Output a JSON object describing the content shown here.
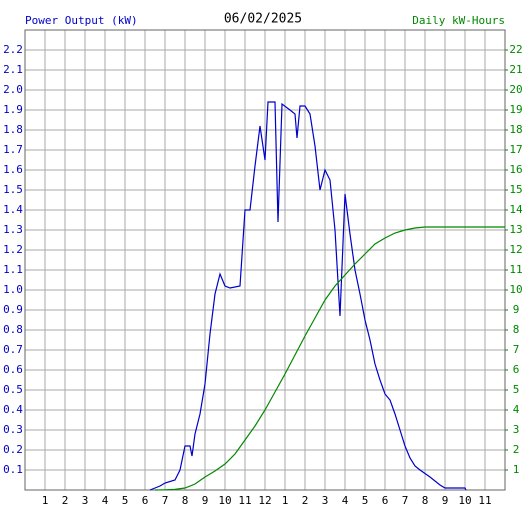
{
  "chart_data": {
    "type": "line",
    "title": "06/02/2025",
    "y_label": "Power Output (kW)",
    "y2_label": "Daily kW-Hours",
    "xlim": [
      0,
      24
    ],
    "xticks": [
      1,
      2,
      3,
      4,
      5,
      6,
      7,
      8,
      9,
      10,
      11,
      12,
      {
        "value": 13,
        "label": "1"
      },
      {
        "value": 14,
        "label": "2"
      },
      {
        "value": 15,
        "label": "3"
      },
      {
        "value": 16,
        "label": "4"
      },
      {
        "value": 17,
        "label": "5"
      },
      {
        "value": 18,
        "label": "6"
      },
      {
        "value": 19,
        "label": "7"
      },
      {
        "value": 20,
        "label": "8"
      },
      {
        "value": 21,
        "label": "9"
      },
      {
        "value": 22,
        "label": "10"
      },
      {
        "value": 23,
        "label": "11"
      }
    ],
    "ylim": [
      0,
      2.3
    ],
    "yticks": [
      0.1,
      0.2,
      0.3,
      0.4,
      0.5,
      0.6,
      0.7,
      0.8,
      0.9,
      {
        "value": 1,
        "label": "1.0"
      },
      1.1,
      1.2,
      1.3,
      1.4,
      1.5,
      1.6,
      1.7,
      1.8,
      1.9,
      {
        "value": 2,
        "label": "2.0"
      },
      2.1,
      2.2
    ],
    "y2lim": [
      0,
      23
    ],
    "y2ticks": [
      1,
      2,
      3,
      4,
      5,
      6,
      7,
      8,
      9,
      10,
      11,
      12,
      13,
      14,
      15,
      16,
      17,
      18,
      19,
      20,
      21,
      22
    ],
    "grid": true,
    "series": [
      {
        "name": "Power Output (kW)",
        "color": "#0000cc",
        "x": [
          6.25,
          6.75,
          7,
          7.5,
          7.75,
          8,
          8.25,
          8.35,
          8.5,
          8.75,
          9,
          9.25,
          9.5,
          9.75,
          10,
          10.25,
          10.75,
          11,
          11.25,
          11.5,
          11.75,
          12,
          12.15,
          12.5,
          12.65,
          12.85,
          13.25,
          13.5,
          13.6,
          13.75,
          14,
          14.25,
          14.5,
          14.75,
          15,
          15.25,
          15.5,
          15.75,
          16,
          16.25,
          16.5,
          16.75,
          17,
          17.25,
          17.5,
          17.75,
          18,
          18.25,
          18.5,
          18.75,
          19,
          19.25,
          19.5,
          19.75,
          20.25,
          20.75,
          21,
          22,
          22.05
        ],
        "values": [
          0,
          0.02,
          0.035,
          0.05,
          0.1,
          0.22,
          0.22,
          0.17,
          0.28,
          0.38,
          0.53,
          0.78,
          0.98,
          1.08,
          1.02,
          1.01,
          1.02,
          1.4,
          1.4,
          1.62,
          1.82,
          1.65,
          1.94,
          1.94,
          1.34,
          1.93,
          1.9,
          1.88,
          1.76,
          1.92,
          1.92,
          1.88,
          1.72,
          1.5,
          1.6,
          1.55,
          1.3,
          0.87,
          1.48,
          1.28,
          1.1,
          0.98,
          0.85,
          0.75,
          0.63,
          0.55,
          0.48,
          0.45,
          0.38,
          0.3,
          0.22,
          0.16,
          0.12,
          0.1,
          0.065,
          0.025,
          0.01,
          0.01,
          0
        ]
      },
      {
        "name": "Daily kW-Hours",
        "color": "#008800",
        "axis": "y2",
        "x": [
          6.5,
          7,
          7.5,
          8,
          8.5,
          9,
          9.5,
          10,
          10.5,
          11,
          11.5,
          12,
          12.5,
          13,
          13.5,
          14,
          14.5,
          15,
          15.5,
          16,
          16.5,
          17,
          17.5,
          18,
          18.5,
          19,
          19.5,
          20,
          21,
          22,
          24
        ],
        "values": [
          0,
          0.01,
          0.03,
          0.1,
          0.3,
          0.65,
          0.95,
          1.3,
          1.8,
          2.5,
          3.2,
          4.0,
          4.9,
          5.8,
          6.75,
          7.7,
          8.6,
          9.5,
          10.2,
          10.75,
          11.3,
          11.8,
          12.3,
          12.6,
          12.85,
          13.0,
          13.1,
          13.15,
          13.15,
          13.15,
          13.15
        ]
      }
    ]
  }
}
